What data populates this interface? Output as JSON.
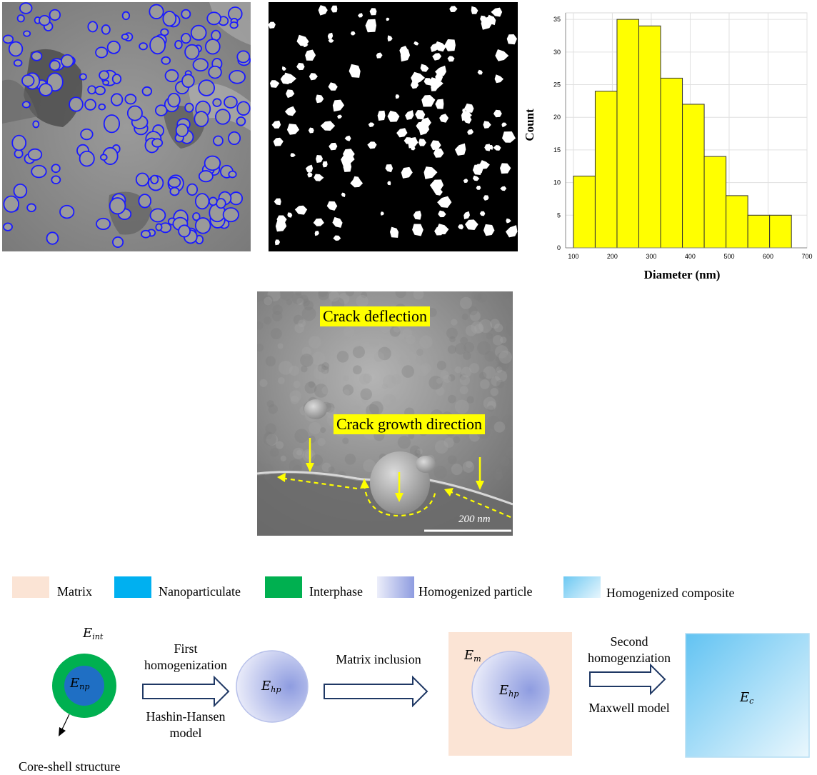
{
  "panel_a": {
    "name": "sem-particle-detection"
  },
  "panel_b": {
    "name": "binary-mask"
  },
  "chart_data": {
    "type": "bar",
    "xlabel": "Diameter (nm)",
    "ylabel": "Count",
    "xlim": [
      80,
      700
    ],
    "ylim": [
      0,
      36
    ],
    "xticks": [
      100,
      200,
      300,
      400,
      500,
      600,
      700
    ],
    "yticks": [
      0,
      5,
      10,
      15,
      20,
      25,
      30,
      35
    ],
    "grid": true,
    "bin_width": 56,
    "bins": [
      {
        "x0": 100,
        "x1": 156,
        "count": 11
      },
      {
        "x0": 156,
        "x1": 212,
        "count": 24
      },
      {
        "x0": 212,
        "x1": 268,
        "count": 35
      },
      {
        "x0": 268,
        "x1": 324,
        "count": 34
      },
      {
        "x0": 324,
        "x1": 380,
        "count": 26
      },
      {
        "x0": 380,
        "x1": 436,
        "count": 22
      },
      {
        "x0": 436,
        "x1": 492,
        "count": 14
      },
      {
        "x0": 492,
        "x1": 548,
        "count": 8
      },
      {
        "x0": 548,
        "x1": 604,
        "count": 5
      },
      {
        "x0": 604,
        "x1": 660,
        "count": 5
      }
    ],
    "bar_color": "#ffff00"
  },
  "sem": {
    "crack_deflection": "Crack deflection",
    "crack_growth": "Crack growth direction",
    "scale_bar": "200 nm"
  },
  "legend": [
    {
      "label": "Matrix",
      "color": "#fbe4d5"
    },
    {
      "label": "Nanoparticulate",
      "color": "#00b0f0"
    },
    {
      "label": "Interphase",
      "color": "#00b050"
    },
    {
      "label": "Homogenized particle",
      "color": "#8e9ce0"
    },
    {
      "label": "Homogenized composite",
      "color": "#8fd4f5"
    }
  ],
  "flow": {
    "core_shell": "Core-shell structure",
    "e_int": [
      "E",
      "int"
    ],
    "e_np": [
      "E",
      "np"
    ],
    "e_hp": [
      "E",
      "hp"
    ],
    "e_m": [
      "E",
      "m"
    ],
    "e_c": [
      "E",
      "c"
    ],
    "step1_top": [
      "First",
      "homogenization"
    ],
    "step1_bottom": [
      "Hashin-Hansen",
      "model"
    ],
    "step2_top": [
      "Matrix inclusion"
    ],
    "step3_top": [
      "Second",
      "homogenziation"
    ],
    "step3_bottom": [
      "Maxwell model"
    ]
  }
}
